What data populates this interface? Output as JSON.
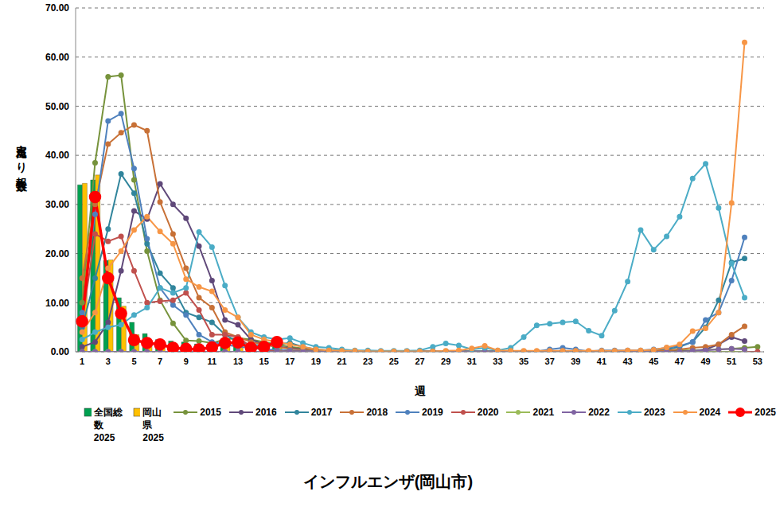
{
  "chart_data": {
    "type": "line",
    "title": "インフルエンザ(岡山市)",
    "x_label": "週",
    "y_label": "定点当たり報告数",
    "categories": [
      "1",
      null,
      "3",
      null,
      "5",
      null,
      "7",
      null,
      "9",
      null,
      "11",
      null,
      "13",
      null,
      "15",
      null,
      "17",
      null,
      "19",
      null,
      "21",
      null,
      "23",
      null,
      "25",
      null,
      "27",
      null,
      "29",
      null,
      "31",
      null,
      "33",
      null,
      "35",
      null,
      "37",
      null,
      "39",
      null,
      "41",
      null,
      "43",
      null,
      "45",
      null,
      "47",
      null,
      "49",
      null,
      "51",
      null,
      "53"
    ],
    "ylim": [
      0,
      70
    ],
    "yticks": [
      {
        "value": 0,
        "label": "0.00"
      },
      {
        "value": 10,
        "label": "10.00"
      },
      {
        "value": 20,
        "label": "20.00"
      },
      {
        "value": 30,
        "label": "30.00"
      },
      {
        "value": 40,
        "label": "40.00"
      },
      {
        "value": 50,
        "label": "50.00"
      },
      {
        "value": 60,
        "label": "60.00"
      },
      {
        "value": 70,
        "label": "70.00"
      }
    ],
    "grid": true,
    "legend": "bottom",
    "series": [
      {
        "name": "全国総数 2025",
        "type": "bar",
        "color": "#00a050",
        "values": [
          34,
          35,
          18.6,
          11,
          6,
          3.7,
          2.5,
          2.2,
          2,
          1.6,
          1.6,
          1.8,
          1.9,
          1.6,
          1.6,
          1.5,
          null,
          null,
          null,
          null,
          null,
          null,
          null,
          null,
          null,
          null,
          null,
          null,
          null,
          null,
          null,
          null,
          null,
          null,
          null,
          null,
          null,
          null,
          null,
          null,
          null,
          null,
          null,
          null,
          null,
          null,
          null,
          null,
          null,
          null,
          null,
          null,
          null
        ]
      },
      {
        "name": "岡山県 2025",
        "type": "bar",
        "color": "#ffc000",
        "values": [
          34.3,
          36,
          18.7,
          9.3,
          3.5,
          2,
          1.6,
          1.2,
          1,
          0.9,
          1.2,
          1.6,
          1.8,
          1.2,
          1.4,
          1.6,
          null,
          null,
          null,
          null,
          null,
          null,
          null,
          null,
          null,
          null,
          null,
          null,
          null,
          null,
          null,
          null,
          null,
          null,
          null,
          null,
          null,
          null,
          null,
          null,
          null,
          null,
          null,
          null,
          null,
          null,
          null,
          null,
          null,
          null,
          null,
          null,
          null
        ]
      },
      {
        "name": "2015",
        "type": "line",
        "marker": "circle",
        "color": "#77933c",
        "values": [
          10,
          38.5,
          56,
          56.3,
          35,
          20.5,
          10.5,
          5.8,
          2.3,
          2.2,
          1.8,
          2.5,
          2.8,
          2.5,
          2,
          1.5,
          1,
          0.7,
          0.4,
          0.3,
          0.2,
          0.1,
          0.1,
          0.1,
          0.1,
          0.1,
          0.1,
          0.1,
          0.1,
          0.1,
          0.1,
          0.1,
          0.1,
          0.1,
          0.1,
          0.1,
          0.1,
          0.1,
          0.1,
          0.1,
          0.1,
          0.1,
          0.1,
          0.1,
          0.2,
          0.2,
          0.3,
          0.3,
          0.4,
          0.5,
          0.6,
          0.8,
          1
        ]
      },
      {
        "name": "2016",
        "type": "line",
        "marker": "circle",
        "color": "#60497a",
        "values": [
          1,
          2,
          6,
          16.5,
          28.7,
          27,
          34.2,
          30,
          27.2,
          21.5,
          14.5,
          6.5,
          5.5,
          2.5,
          1.5,
          1,
          0.8,
          0.5,
          0.3,
          0.2,
          0.1,
          0.1,
          0.1,
          0.1,
          0.1,
          0.1,
          0.1,
          0.1,
          0.1,
          0.1,
          0.1,
          0.1,
          0.1,
          0.1,
          0.1,
          0.1,
          0.1,
          0.1,
          0.1,
          0.1,
          0.1,
          0.1,
          0.1,
          0.1,
          0.1,
          0.1,
          0.1,
          0.1,
          0.5,
          1.5,
          3,
          2.2,
          null
        ]
      },
      {
        "name": "2017",
        "type": "line",
        "marker": "circle",
        "color": "#31859c",
        "values": [
          5,
          15,
          25,
          36.2,
          32.3,
          22,
          16,
          13,
          8,
          7,
          6,
          3.5,
          2,
          1.5,
          1.2,
          1.5,
          1.8,
          1,
          0.5,
          0.3,
          0.2,
          0.2,
          0.1,
          0.1,
          0.1,
          0.1,
          0.1,
          0.1,
          0.1,
          0.1,
          0.1,
          0.1,
          0.1,
          0.1,
          0.1,
          0.1,
          0.1,
          0.1,
          0.1,
          0.1,
          0.1,
          0.1,
          0.1,
          0.2,
          0.3,
          0.5,
          1,
          2,
          5,
          10.5,
          18.2,
          19,
          null
        ]
      },
      {
        "name": "2018",
        "type": "line",
        "marker": "circle",
        "color": "#c87137",
        "values": [
          15,
          30,
          42.3,
          44.6,
          46.2,
          45,
          30.5,
          24,
          17,
          11,
          9,
          4,
          3,
          2,
          1.5,
          1,
          0.6,
          0.4,
          0.3,
          0.2,
          0.1,
          0.1,
          0.1,
          0.1,
          0.1,
          0.1,
          0.1,
          0.1,
          0.1,
          0.1,
          0.1,
          0.1,
          0.1,
          0.1,
          0.1,
          0.1,
          0.1,
          0.1,
          0.1,
          0.1,
          0.1,
          0.1,
          0.1,
          0.1,
          0.2,
          0.3,
          0.5,
          0.8,
          1,
          1.5,
          3.5,
          5.2,
          null
        ]
      },
      {
        "name": "2019",
        "type": "line",
        "marker": "circle",
        "color": "#4f81bd",
        "values": [
          8,
          28,
          47,
          48.5,
          37.3,
          23,
          13,
          9.5,
          7.5,
          3.5,
          2,
          1.5,
          1,
          0.8,
          0.5,
          0.4,
          0.3,
          0.2,
          0.1,
          0.1,
          0.1,
          0.1,
          0.1,
          0.1,
          0.1,
          0.1,
          0.1,
          0.1,
          0.1,
          0.1,
          0.1,
          0.1,
          0.1,
          0.1,
          0.1,
          0.1,
          0.5,
          0.8,
          0.5,
          0.1,
          0.3,
          0.3,
          0.3,
          0.3,
          0.5,
          0.8,
          1.2,
          2,
          6.5,
          8,
          14.5,
          23.3,
          null
        ]
      },
      {
        "name": "2020",
        "type": "line",
        "marker": "circle",
        "color": "#c0504d",
        "values": [
          6,
          24,
          22.5,
          23.5,
          16.5,
          10,
          10.3,
          10.5,
          12,
          8.5,
          3.5,
          3.5,
          3,
          1,
          0.3,
          0.1,
          0.1,
          0.1,
          0,
          0,
          0,
          0,
          0,
          0,
          0,
          0,
          0,
          0,
          0,
          0,
          0,
          0,
          0,
          0,
          0,
          0,
          0,
          0,
          0,
          0,
          0,
          0,
          0,
          0,
          0,
          0,
          0,
          0,
          0,
          0,
          0,
          0,
          0
        ]
      },
      {
        "name": "2021",
        "type": "line",
        "marker": "circle",
        "color": "#9bbb59",
        "values": [
          0,
          0,
          0,
          0,
          0,
          0,
          0,
          0,
          0,
          0,
          0,
          0,
          0,
          0,
          0,
          0,
          0,
          0,
          0,
          0,
          0,
          0,
          0,
          0,
          0,
          0,
          0,
          0,
          0,
          0,
          0,
          0,
          0,
          0,
          0,
          0,
          0,
          0,
          0,
          0,
          0,
          0,
          0,
          0,
          0,
          0,
          0,
          0,
          0,
          0,
          0,
          0,
          null
        ]
      },
      {
        "name": "2022",
        "type": "line",
        "marker": "circle",
        "color": "#8064a2",
        "values": [
          0,
          0,
          0,
          0,
          0,
          0,
          0,
          0,
          0,
          0,
          0,
          0,
          0,
          0,
          0,
          0,
          0,
          0,
          0,
          0,
          0,
          0,
          0,
          0,
          0,
          0,
          0,
          0,
          0,
          0,
          0,
          0,
          0,
          0,
          0,
          0,
          0,
          0,
          0,
          0,
          0,
          0,
          0,
          0,
          0,
          0,
          0,
          0.2,
          0.3,
          0.5,
          0.6,
          0.5,
          null
        ]
      },
      {
        "name": "2023",
        "type": "line",
        "marker": "circle",
        "color": "#4bacc6",
        "values": [
          2.5,
          4,
          5,
          5.5,
          7.5,
          9,
          13,
          12,
          13,
          24.4,
          21.3,
          13.5,
          7,
          4,
          3,
          2.5,
          2.8,
          1.8,
          1,
          0.8,
          0.5,
          0.3,
          0.3,
          0.2,
          0.2,
          0.2,
          0.3,
          1,
          1.7,
          1.3,
          0.5,
          0.8,
          0.3,
          0.8,
          3,
          5.4,
          5.7,
          6,
          6.2,
          4.3,
          3.3,
          8.4,
          14.3,
          24.8,
          20.8,
          23.5,
          27.5,
          35.3,
          38.3,
          29.3,
          18,
          11,
          null
        ]
      },
      {
        "name": "2024",
        "type": "line",
        "marker": "circle",
        "color": "#f79646",
        "values": [
          4,
          8,
          17,
          20.5,
          24.8,
          27.5,
          24.5,
          22,
          14.8,
          13.2,
          12.3,
          8.5,
          7,
          3.5,
          2.5,
          2,
          1.5,
          1,
          0.5,
          0.3,
          0.2,
          0.2,
          0.1,
          0.1,
          0.1,
          0.1,
          0.1,
          0.1,
          0.2,
          0.3,
          0.7,
          1.2,
          0.3,
          0.2,
          0.2,
          0.2,
          0.2,
          0.2,
          0.2,
          0.2,
          0.2,
          0.2,
          0.3,
          0.3,
          0.4,
          0.9,
          1.5,
          4.2,
          4.8,
          8,
          30.3,
          63,
          null
        ]
      },
      {
        "name": "2025",
        "type": "line",
        "marker": "circle",
        "color": "#ff0000",
        "values": [
          6.2,
          31.5,
          15,
          7.8,
          2.4,
          1.8,
          1.5,
          0.8,
          0.6,
          0.5,
          0.9,
          1.8,
          1.9,
          0.8,
          1,
          2,
          null,
          null,
          null,
          null,
          null,
          null,
          null,
          null,
          null,
          null,
          null,
          null,
          null,
          null,
          null,
          null,
          null,
          null,
          null,
          null,
          null,
          null,
          null,
          null,
          null,
          null,
          null,
          null,
          null,
          null,
          null,
          null,
          null,
          null,
          null,
          null,
          null
        ]
      }
    ]
  }
}
